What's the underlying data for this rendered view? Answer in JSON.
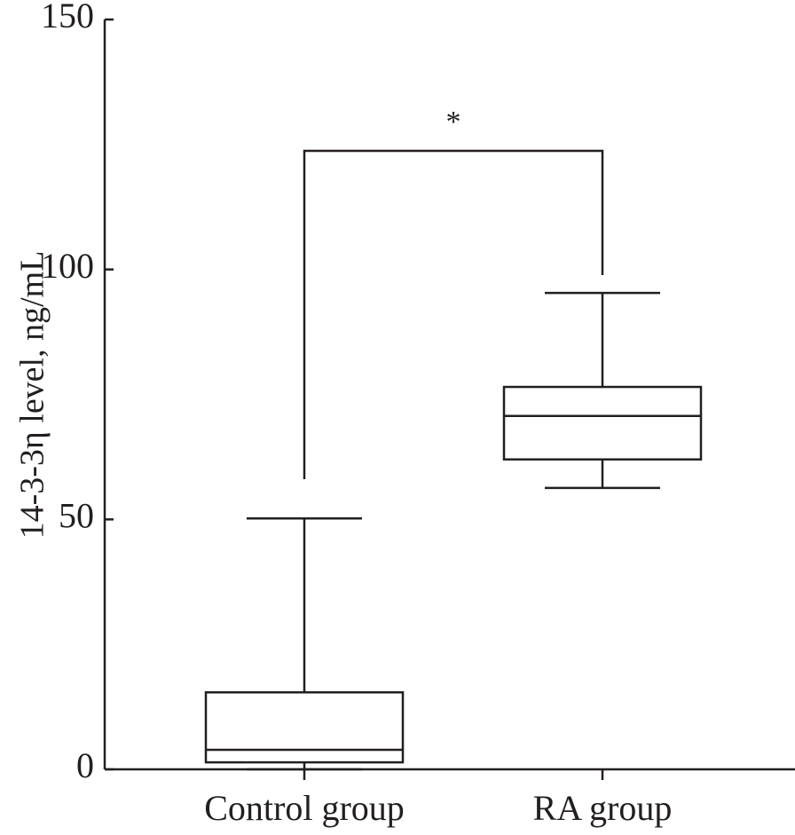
{
  "chart_data": {
    "type": "box",
    "y_label": "14-3-3η level, ng/mL",
    "categories": [
      "Control group",
      "RA group"
    ],
    "boxes": [
      {
        "min": 0,
        "q1": 1.4,
        "median": 3.9,
        "q3": 15.4,
        "max": 50.2
      },
      {
        "min": 56.3,
        "q1": 62.0,
        "median": 70.7,
        "q3": 76.5,
        "max": 95.3
      }
    ],
    "annotation": "*",
    "color": "#231f20",
    "ylim": [
      0,
      150
    ],
    "yticks": [
      0,
      50,
      100,
      150
    ],
    "grid": false
  }
}
